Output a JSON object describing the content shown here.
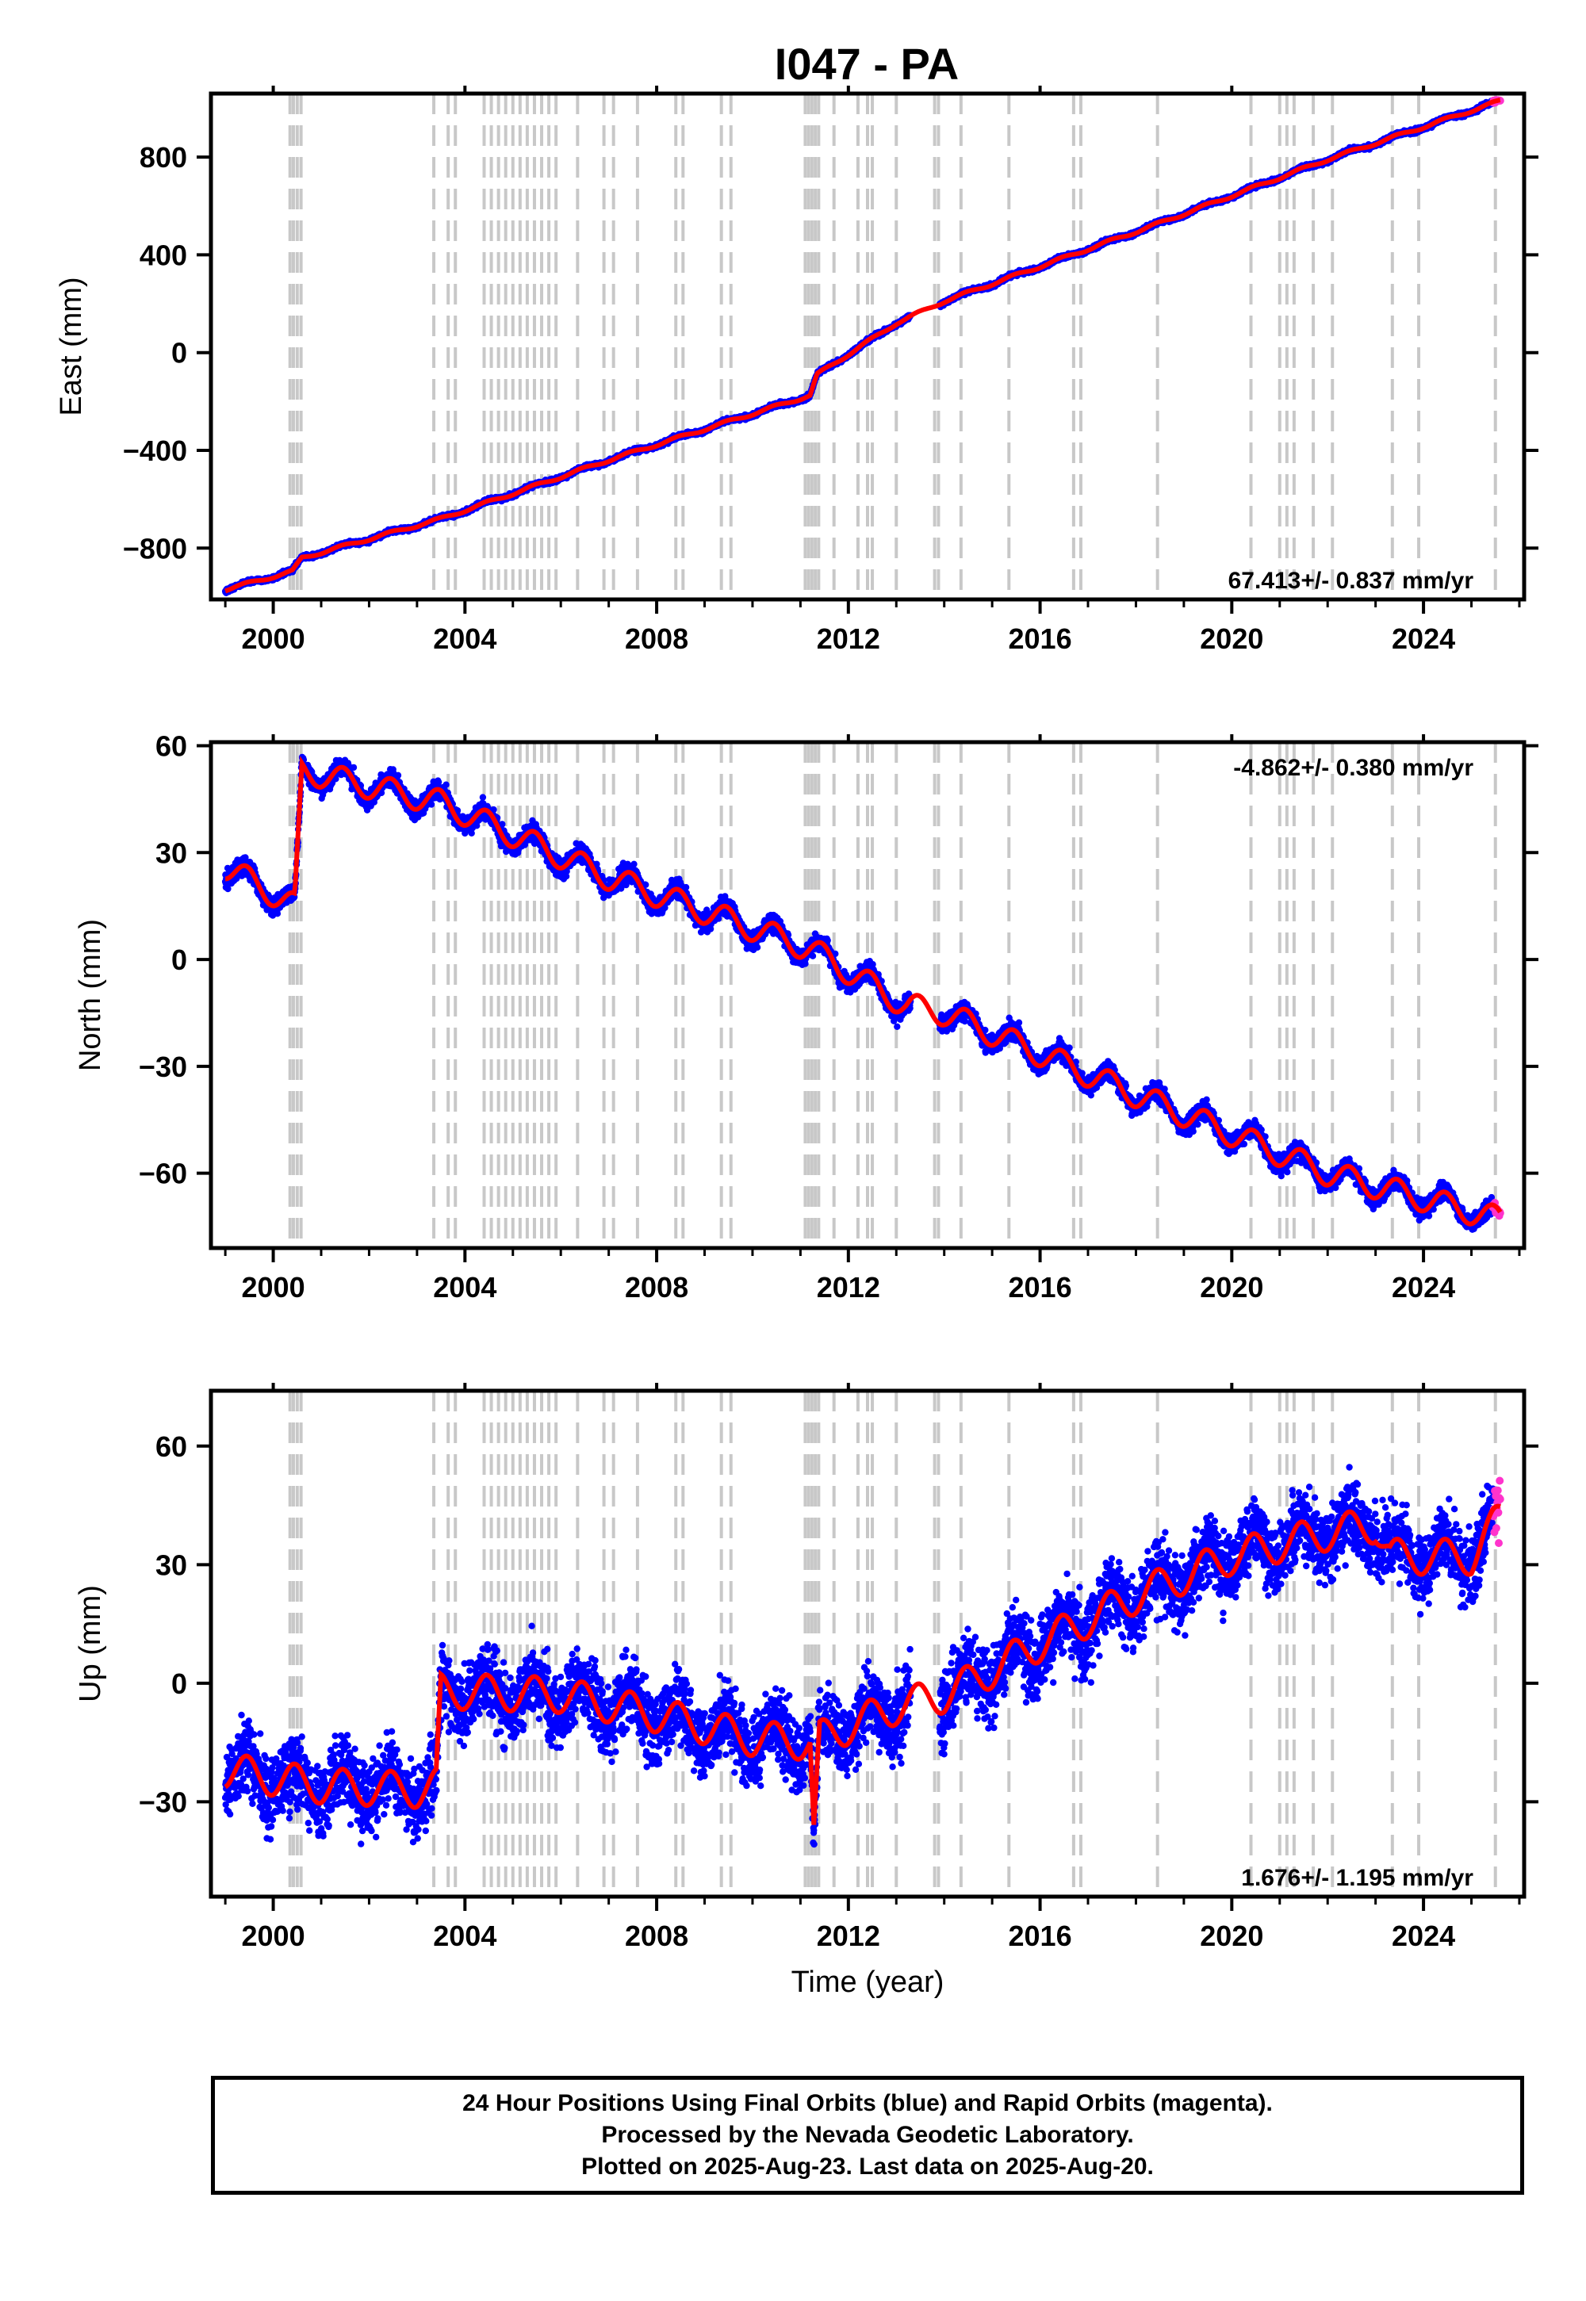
{
  "title": "I047 - PA",
  "footer": {
    "line1": "24 Hour Positions Using Final Orbits (blue) and Rapid Orbits (magenta).",
    "line2": "Processed by the Nevada Geodetic Laboratory.",
    "line3": "Plotted on 2025-Aug-23. Last data on 2025-Aug-20."
  },
  "colors": {
    "final": "#0000ff",
    "rapid": "#ff33cc",
    "model": "#ff0000",
    "event": "#c8c8c8"
  },
  "chart_data": [
    {
      "type": "scatter",
      "ylabel": "East (mm)",
      "xlabel": "",
      "xlim": [
        1998.7,
        2026.1
      ],
      "ylim": [
        -1010,
        1060
      ],
      "xticks": [
        2000,
        2004,
        2008,
        2012,
        2016,
        2020,
        2024
      ],
      "yticks": [
        -800,
        -400,
        0,
        400,
        800
      ],
      "rate": "67.413+/- 0.837 mm/yr",
      "rate_position": "bottom-right",
      "trend": [
        [
          1999.0,
          -970
        ],
        [
          2000.4,
          -895
        ],
        [
          2000.6,
          -840
        ],
        [
          2003.5,
          -680
        ],
        [
          2007.0,
          -440
        ],
        [
          2011.2,
          -175
        ],
        [
          2011.35,
          -90
        ],
        [
          2013.0,
          120
        ],
        [
          2014.0,
          210
        ],
        [
          2018.5,
          530
        ],
        [
          2022.0,
          790
        ],
        [
          2025.6,
          1030
        ]
      ],
      "gap": [
        2013.3,
        2013.9
      ],
      "rapid_x": [
        2025.45,
        2025.6
      ]
    },
    {
      "type": "scatter",
      "ylabel": "North (mm)",
      "xlabel": "",
      "xlim": [
        1998.7,
        2026.1
      ],
      "ylim": [
        -81,
        61
      ],
      "xticks": [
        2000,
        2004,
        2008,
        2012,
        2016,
        2020,
        2024
      ],
      "yticks": [
        -60,
        -30,
        0,
        30,
        60
      ],
      "rate": "-4.862+/- 0.380 mm/yr",
      "rate_position": "top-right",
      "trend": [
        [
          1999.0,
          26
        ],
        [
          2000.45,
          15
        ],
        [
          2000.6,
          53
        ],
        [
          2003.5,
          44
        ],
        [
          2007.0,
          23
        ],
        [
          2011.2,
          3
        ],
        [
          2013.2,
          -13
        ],
        [
          2014.0,
          -15
        ],
        [
          2018.0,
          -38
        ],
        [
          2022.0,
          -60
        ],
        [
          2025.6,
          -73
        ]
      ],
      "gap": [
        2013.3,
        2013.9
      ],
      "rapid_x": [
        2025.45,
        2025.6
      ]
    },
    {
      "type": "scatter",
      "ylabel": "Up (mm)",
      "xlabel": "Time (year)",
      "xlim": [
        1998.7,
        2026.1
      ],
      "ylim": [
        -54,
        74
      ],
      "xticks": [
        2000,
        2004,
        2008,
        2012,
        2016,
        2020,
        2024
      ],
      "yticks": [
        -30,
        0,
        30,
        60
      ],
      "rate": "1.676+/- 1.195 mm/yr",
      "rate_position": "bottom-right",
      "trend": [
        [
          1999.0,
          -22
        ],
        [
          2001.0,
          -26
        ],
        [
          2003.0,
          -27
        ],
        [
          2003.4,
          -26
        ],
        [
          2003.5,
          -2
        ],
        [
          2006.0,
          -3
        ],
        [
          2008.0,
          -8
        ],
        [
          2010.0,
          -14
        ],
        [
          2011.2,
          -15
        ],
        [
          2011.28,
          -38
        ],
        [
          2011.4,
          -14
        ],
        [
          2013.0,
          -6
        ],
        [
          2014.0,
          -3
        ],
        [
          2014.5,
          0
        ],
        [
          2016.0,
          10
        ],
        [
          2018.0,
          22
        ],
        [
          2020.0,
          32
        ],
        [
          2022.0,
          38
        ],
        [
          2023.0,
          40
        ],
        [
          2023.3,
          32
        ],
        [
          2025.0,
          32
        ],
        [
          2025.6,
          42
        ]
      ],
      "gap": [
        2013.3,
        2013.9
      ],
      "rapid_x": [
        2025.45,
        2025.6
      ]
    }
  ],
  "events": [
    2000.35,
    2000.42,
    2000.5,
    2000.58,
    2003.35,
    2003.65,
    2003.8,
    2004.4,
    2004.55,
    2004.7,
    2004.85,
    2005.0,
    2005.15,
    2005.3,
    2005.45,
    2005.6,
    2005.75,
    2005.9,
    2006.35,
    2006.9,
    2007.1,
    2007.6,
    2008.4,
    2008.55,
    2009.35,
    2009.55,
    2011.1,
    2011.17,
    2011.24,
    2011.31,
    2011.38,
    2011.7,
    2012.2,
    2012.4,
    2012.5,
    2013.0,
    2013.8,
    2013.88,
    2014.35,
    2015.35,
    2016.7,
    2016.85,
    2018.45,
    2020.4,
    2021.0,
    2021.15,
    2021.3,
    2021.7,
    2022.1,
    2023.35,
    2023.9,
    2025.5
  ]
}
